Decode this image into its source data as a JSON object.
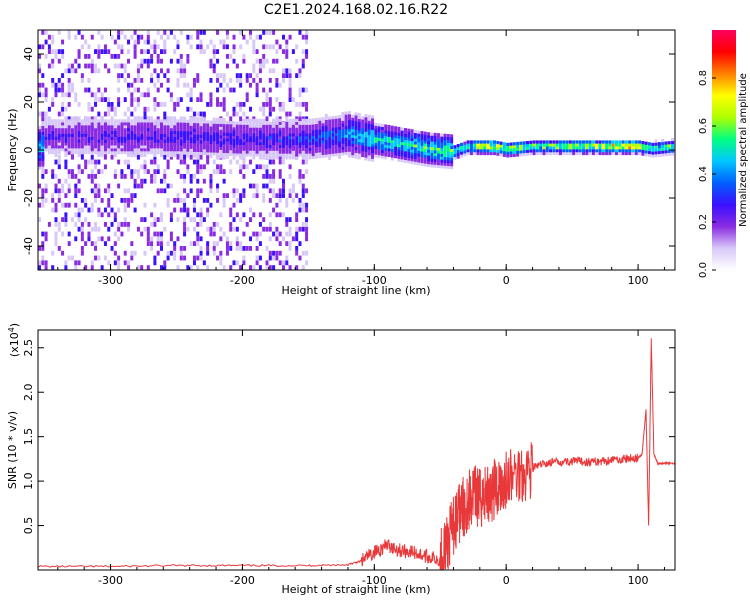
{
  "title": "C2E1.2024.168.02.16.R22",
  "chart_data": [
    {
      "type": "heatmap",
      "xlabel": "Height of straight line (km)",
      "ylabel": "Frequency (Hz)",
      "xlim": [
        -355,
        128
      ],
      "ylim": [
        -50,
        50
      ],
      "x_ticks": [
        -300,
        -200,
        -100,
        0,
        100
      ],
      "y_ticks": [
        -40,
        -20,
        0,
        20,
        40
      ],
      "x_tick_labels": [
        "-300",
        "-200",
        "-100",
        "0",
        "100"
      ],
      "y_tick_labels": [
        "-40",
        "-20",
        "0",
        "20",
        "40"
      ],
      "colorbar": {
        "label": "Normalized spectral amplitude",
        "range": [
          0.0,
          1.0
        ],
        "ticks": [
          0.0,
          0.2,
          0.4,
          0.6,
          0.8
        ],
        "tick_labels": [
          "0.0",
          "0.2",
          "0.4",
          "0.6",
          "0.8"
        ],
        "colormap": [
          "#ffffff",
          "#d8c8f8",
          "#8a2be2",
          "#3a10ff",
          "#0060ff",
          "#00c8ff",
          "#00ff80",
          "#b0ff00",
          "#ffff00",
          "#ff8000",
          "#ff0000",
          "#ff0060"
        ]
      },
      "ridge": {
        "x": [
          -350,
          -300,
          -250,
          -200,
          -150,
          -120,
          -100,
          -80,
          -60,
          -40,
          -30,
          -20,
          -10,
          0,
          20,
          50,
          80,
          100,
          110,
          128
        ],
        "y": [
          5,
          5,
          5,
          4,
          4,
          6,
          4,
          2,
          0,
          -1,
          1,
          1,
          1,
          0,
          1,
          1,
          1,
          1,
          0,
          1
        ],
        "amplitude": [
          0.25,
          0.28,
          0.3,
          0.3,
          0.35,
          0.45,
          0.55,
          0.55,
          0.6,
          0.65,
          0.6,
          0.8,
          0.8,
          0.75,
          0.65,
          0.7,
          0.85,
          0.85,
          0.6,
          0.7
        ]
      }
    },
    {
      "type": "line",
      "xlabel": "Height of straight line (km)",
      "ylabel": "SNR (10 * v/v)",
      "y_multiplier_label": "(x10",
      "y_multiplier_exp": "4",
      "y_multiplier_close": ")",
      "xlim": [
        -355,
        128
      ],
      "ylim": [
        0,
        2.7
      ],
      "x_ticks": [
        -300,
        -200,
        -100,
        0,
        100
      ],
      "y_ticks": [
        0.5,
        1.0,
        1.5,
        2.0,
        2.5
      ],
      "x_tick_labels": [
        "-300",
        "-200",
        "-100",
        "0",
        "100"
      ],
      "y_tick_labels": [
        "0.5",
        "1.0",
        "1.5",
        "2.0",
        "2.5"
      ],
      "series": [
        {
          "color": "#e8383a",
          "x": [
            -355,
            -300,
            -250,
            -200,
            -150,
            -120,
            -110,
            -100,
            -90,
            -80,
            -70,
            -60,
            -50,
            -45,
            -40,
            -35,
            -30,
            -25,
            -20,
            -15,
            -10,
            -5,
            0,
            10,
            20,
            30,
            40,
            50,
            60,
            70,
            80,
            90,
            100,
            103,
            106,
            108,
            110,
            112,
            115,
            120,
            128
          ],
          "y": [
            0.04,
            0.04,
            0.05,
            0.05,
            0.05,
            0.06,
            0.1,
            0.2,
            0.28,
            0.22,
            0.2,
            0.15,
            0.12,
            0.25,
            0.5,
            0.65,
            0.75,
            0.85,
            0.8,
            0.85,
            0.9,
            0.95,
            1.0,
            1.1,
            1.15,
            1.2,
            1.22,
            1.22,
            1.22,
            1.22,
            1.24,
            1.25,
            1.26,
            1.3,
            1.8,
            0.5,
            2.6,
            1.3,
            1.2,
            1.2,
            1.2
          ]
        }
      ]
    }
  ]
}
